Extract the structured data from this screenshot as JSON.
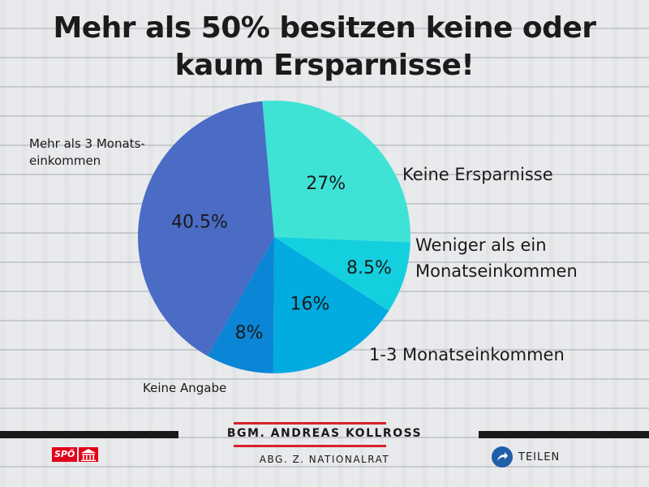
{
  "chart_data": {
    "type": "pie",
    "title_lines": [
      "Mehr als 50% besitzen keine oder",
      "kaum Ersparnisse!"
    ],
    "slices": [
      {
        "label": "Keine Ersparnisse",
        "value": 27,
        "value_label": "27%",
        "color": "#3ee3d6"
      },
      {
        "label": "Weniger als ein Monatseinkommen",
        "label_lines": [
          "Weniger als ein",
          "Monatseinkommen"
        ],
        "value": 8.5,
        "value_label": "8.5%",
        "color": "#14d0df"
      },
      {
        "label": "1-3 Monatseinkommen",
        "value": 16,
        "value_label": "16%",
        "color": "#02abe0"
      },
      {
        "label": "Keine Angabe",
        "value": 8,
        "value_label": "8%",
        "color": "#0b85d6"
      },
      {
        "label": "Mehr als 3 Monatseinkommen",
        "label_lines": [
          "Mehr als 3 Monats-",
          "einkommen"
        ],
        "value": 40.5,
        "value_label": "40.5%",
        "color": "#4a6cc4"
      }
    ]
  },
  "footer": {
    "name": "BGM. ANDREAS KOLLROSS",
    "role": "ABG. Z. NATIONALRAT",
    "logo_text": "SPÖ",
    "share_label": "TEILEN"
  },
  "colors": {
    "background": "#e9eaec",
    "accent_red": "#d9202a",
    "share_blue": "#1f5fa8"
  },
  "icons": {
    "share": "share-arrow-icon",
    "logo": "parliament-icon"
  }
}
